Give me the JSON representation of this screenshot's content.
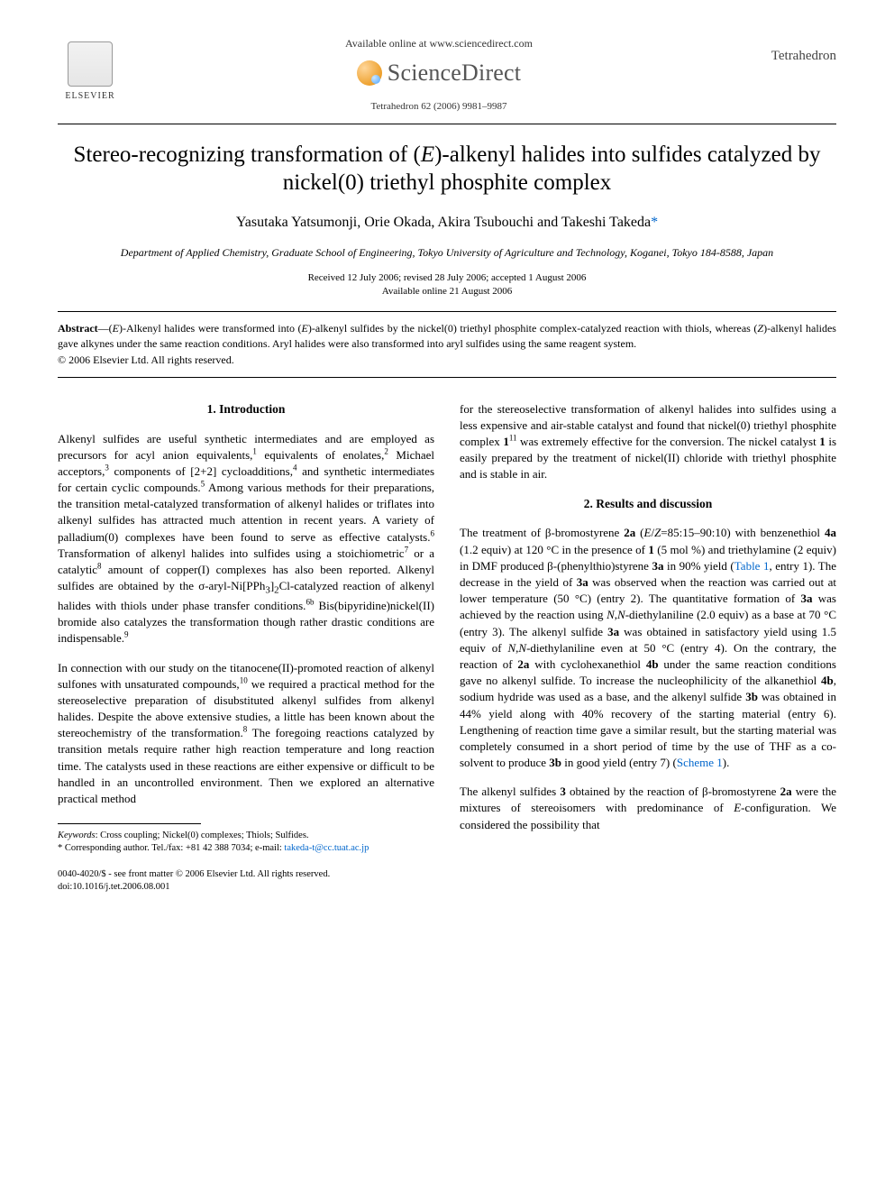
{
  "header": {
    "elsevier_label": "ELSEVIER",
    "available_line": "Available online at www.sciencedirect.com",
    "sd_name": "ScienceDirect",
    "journal_ref": "Tetrahedron 62 (2006) 9981–9987",
    "journal_name": "Tetrahedron"
  },
  "title_html": "Stereo-recognizing transformation of (<em>E</em>)-alkenyl halides into sulfides catalyzed by nickel(0) triethyl phosphite complex",
  "authors_html": "Yasutaka Yatsumonji, Orie Okada, Akira Tsubouchi and Takeshi Takeda<span class=\"corr\">*</span>",
  "affiliation": "Department of Applied Chemistry, Graduate School of Engineering, Tokyo University of Agriculture and Technology, Koganei, Tokyo 184-8588, Japan",
  "dates": {
    "line1": "Received 12 July 2006; revised 28 July 2006; accepted 1 August 2006",
    "line2": "Available online 21 August 2006"
  },
  "abstract_html": "<b>Abstract</b>—(<i>E</i>)-Alkenyl halides were transformed into (<i>E</i>)-alkenyl sulfides by the nickel(0) triethyl phosphite complex-catalyzed reaction with thiols, whereas (<i>Z</i>)-alkenyl halides gave alkynes under the same reaction conditions. Aryl halides were also transformed into aryl sulfides using the same reagent system.",
  "copyright": "© 2006 Elsevier Ltd. All rights reserved.",
  "sections": {
    "intro_head": "1. Introduction",
    "intro_p1_html": "Alkenyl sulfides are useful synthetic intermediates and are employed as precursors for acyl anion equivalents,<sup>1</sup> equivalents of enolates,<sup>2</sup> Michael acceptors,<sup>3</sup> components of [2+2] cycloadditions,<sup>4</sup> and synthetic intermediates for certain cyclic compounds.<sup>5</sup> Among various methods for their preparations, the transition metal-catalyzed transformation of alkenyl halides or triflates into alkenyl sulfides has attracted much attention in recent years. A variety of palladium(0) complexes have been found to serve as effective catalysts.<sup>6</sup> Transformation of alkenyl halides into sulfides using a stoichiometric<sup>7</sup> or a catalytic<sup>8</sup> amount of copper(I) complexes has also been reported. Alkenyl sulfides are obtained by the σ-aryl-Ni[PPh<sub>3</sub>]<sub>2</sub>Cl-catalyzed reaction of alkenyl halides with thiols under phase transfer conditions.<sup>6b</sup> Bis(bipyridine)nickel(II) bromide also catalyzes the transformation though rather drastic conditions are indispensable.<sup>9</sup>",
    "intro_p2_html": "In connection with our study on the titanocene(II)-promoted reaction of alkenyl sulfones with unsaturated compounds,<sup>10</sup> we required a practical method for the stereoselective preparation of disubstituted alkenyl sulfides from alkenyl halides. Despite the above extensive studies, a little has been known about the stereochemistry of the transformation.<sup>8</sup> The foregoing reactions catalyzed by transition metals require rather high reaction temperature and long reaction time. The catalysts used in these reactions are either expensive or difficult to be handled in an uncontrolled environment. Then we explored an alternative practical method",
    "intro_p2b_html": "for the stereoselective transformation of alkenyl halides into sulfides using a less expensive and air-stable catalyst and found that nickel(0) triethyl phosphite complex <b>1</b><sup>11</sup> was extremely effective for the conversion. The nickel catalyst <b>1</b> is easily prepared by the treatment of nickel(II) chloride with triethyl phosphite and is stable in air.",
    "results_head": "2. Results and discussion",
    "results_p1_html": "The treatment of β-bromostyrene <b>2a</b> (<i>E</i>/<i>Z</i>=85:15–90:10) with benzenethiol <b>4a</b> (1.2 equiv) at 120 °C in the presence of <b>1</b> (5 mol %) and triethylamine (2 equiv) in DMF produced β-(phenylthio)styrene <b>3a</b> in 90% yield (<span class=\"link\">Table 1</span>, entry 1). The decrease in the yield of <b>3a</b> was observed when the reaction was carried out at lower temperature (50 °C) (entry 2). The quantitative formation of <b>3a</b> was achieved by the reaction using <i>N</i>,<i>N</i>-diethylaniline (2.0 equiv) as a base at 70 °C (entry 3). The alkenyl sulfide <b>3a</b> was obtained in satisfactory yield using 1.5 equiv of <i>N</i>,<i>N</i>-diethylaniline even at 50 °C (entry 4). On the contrary, the reaction of <b>2a</b> with cyclohexanethiol <b>4b</b> under the same reaction conditions gave no alkenyl sulfide. To increase the nucleophilicity of the alkanethiol <b>4b</b>, sodium hydride was used as a base, and the alkenyl sulfide <b>3b</b> was obtained in 44% yield along with 40% recovery of the starting material (entry 6). Lengthening of reaction time gave a similar result, but the starting material was completely consumed in a short period of time by the use of THF as a co-solvent to produce <b>3b</b> in good yield (entry 7) (<span class=\"link\">Scheme 1</span>).",
    "results_p2_html": "The alkenyl sulfides <b>3</b> obtained by the reaction of β-bromostyrene <b>2a</b> were the mixtures of stereoisomers with predominance of <i>E</i>-configuration. We considered the possibility that"
  },
  "footnotes": {
    "keywords_html": "<span class=\"fi\">Keywords</span>: Cross coupling; Nickel(0) complexes; Thiols; Sulfides.",
    "corresp_html": "* Corresponding author. Tel./fax: +81 42 388 7034; e-mail: <span class=\"link\">takeda-t@cc.tuat.ac.jp</span>"
  },
  "doi": {
    "line1": "0040-4020/$ - see front matter © 2006 Elsevier Ltd. All rights reserved.",
    "line2": "doi:10.1016/j.tet.2006.08.001"
  },
  "colors": {
    "link": "#0066cc",
    "text": "#000000",
    "sd_gray": "#555555"
  }
}
